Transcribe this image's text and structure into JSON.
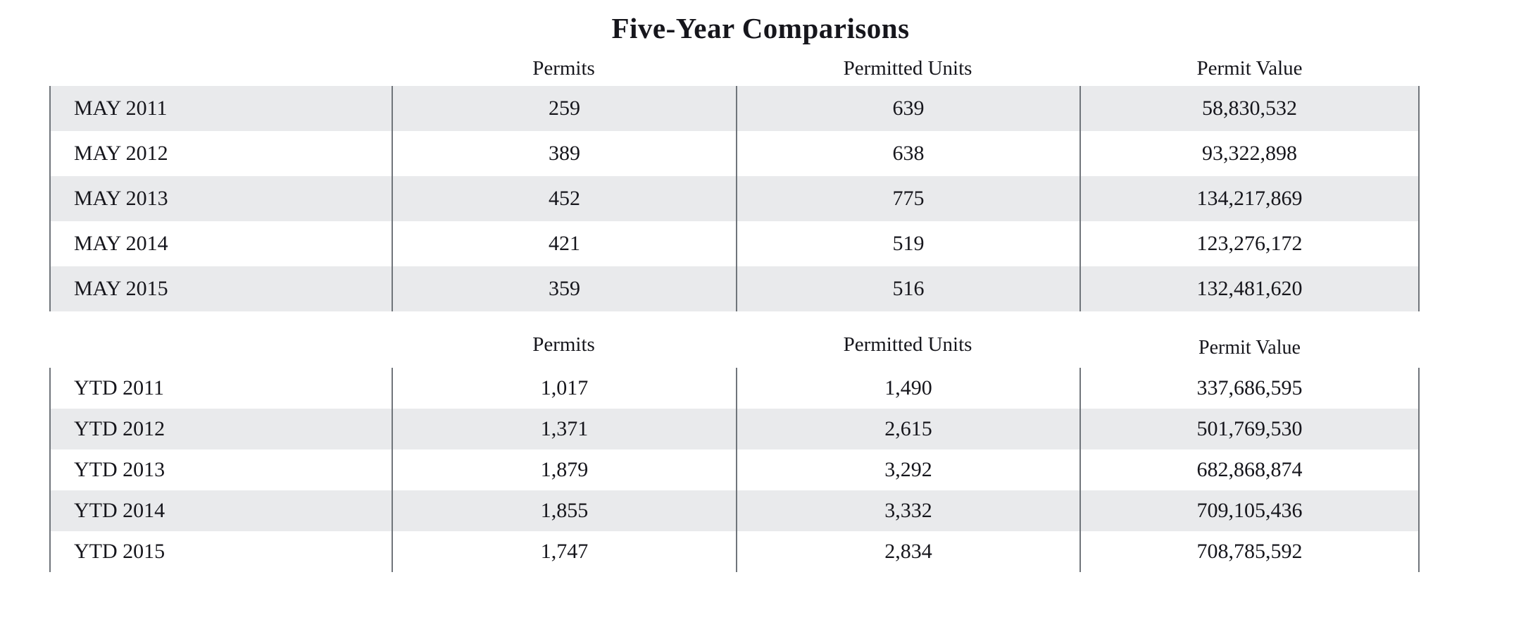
{
  "title": "Five-Year Comparisons",
  "colors": {
    "row_shade": "#e9eaec",
    "divider": "#70757b",
    "text": "#16161c",
    "background": "#ffffff"
  },
  "tables": [
    {
      "name": "monthly-comparison",
      "columns": [
        "Permits",
        "Permitted Units",
        "Permit Value"
      ],
      "rows": [
        {
          "label": "MAY 2011",
          "permits": "259",
          "units": "639",
          "value": "58,830,532"
        },
        {
          "label": "MAY 2012",
          "permits": "389",
          "units": "638",
          "value": "93,322,898"
        },
        {
          "label": "MAY 2013",
          "permits": "452",
          "units": "775",
          "value": "134,217,869"
        },
        {
          "label": "MAY 2014",
          "permits": "421",
          "units": "519",
          "value": "123,276,172"
        },
        {
          "label": "MAY 2015",
          "permits": "359",
          "units": "516",
          "value": "132,481,620"
        }
      ]
    },
    {
      "name": "ytd-comparison",
      "columns": [
        "Permits",
        "Permitted Units",
        "Permit Value"
      ],
      "rows": [
        {
          "label": "YTD 2011",
          "permits": "1,017",
          "units": "1,490",
          "value": "337,686,595"
        },
        {
          "label": "YTD 2012",
          "permits": "1,371",
          "units": "2,615",
          "value": "501,769,530"
        },
        {
          "label": "YTD 2013",
          "permits": "1,879",
          "units": "3,292",
          "value": "682,868,874"
        },
        {
          "label": "YTD 2014",
          "permits": "1,855",
          "units": "3,332",
          "value": "709,105,436"
        },
        {
          "label": "YTD 2015",
          "permits": "1,747",
          "units": "2,834",
          "value": "708,785,592"
        }
      ]
    }
  ]
}
